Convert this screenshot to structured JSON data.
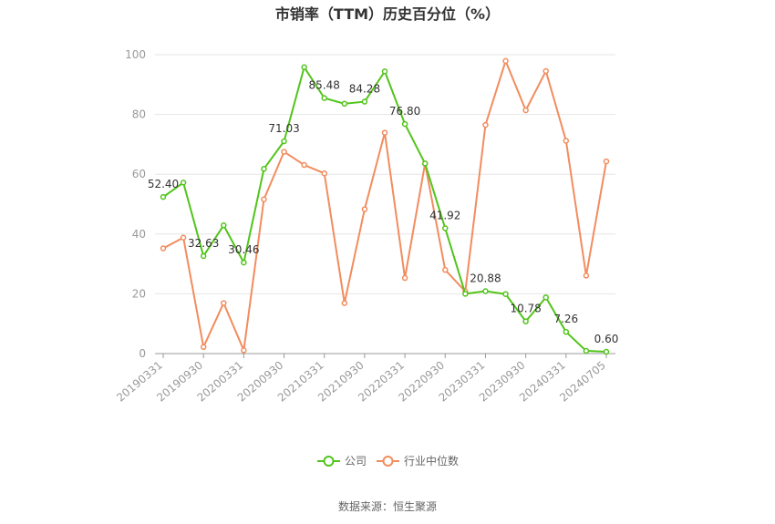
{
  "chart_data": {
    "type": "line",
    "title": "市销率（TTM）历史百分位（%）",
    "source": "数据来源：恒生聚源",
    "ylim": [
      0,
      100
    ],
    "yticks": [
      0,
      20,
      40,
      60,
      80,
      100
    ],
    "grid": true,
    "legend_position": "bottom",
    "x_tick_labels": [
      "20190331",
      "20190930",
      "20200331",
      "20200930",
      "20210331",
      "20210930",
      "20220331",
      "20220930",
      "20230331",
      "20230930",
      "20240331",
      "20240705"
    ],
    "series": [
      {
        "name": "公司",
        "color": "#52c41a",
        "values": [
          52.4,
          57.2,
          32.63,
          42.9,
          30.46,
          61.8,
          71.03,
          95.8,
          85.48,
          83.6,
          84.28,
          94.4,
          76.8,
          63.6,
          41.92,
          20.0,
          20.88,
          19.9,
          10.78,
          18.8,
          7.26,
          0.9,
          0.6
        ],
        "labels": [
          "52.40",
          "",
          "32.63",
          "",
          "30.46",
          "",
          "71.03",
          "",
          "85.48",
          "",
          "84.28",
          "",
          "76.80",
          "",
          "41.92",
          "",
          "20.88",
          "",
          "10.78",
          "",
          "7.26",
          "",
          "0.60"
        ]
      },
      {
        "name": "行业中位数",
        "color": "#f28c5e",
        "values": [
          35.2,
          38.8,
          2.2,
          16.9,
          1.1,
          51.6,
          67.5,
          63.1,
          60.3,
          16.9,
          48.3,
          73.9,
          25.3,
          63.6,
          28.0,
          20.8,
          76.5,
          97.9,
          81.4,
          94.5,
          71.2,
          26.1,
          64.3
        ]
      }
    ]
  }
}
